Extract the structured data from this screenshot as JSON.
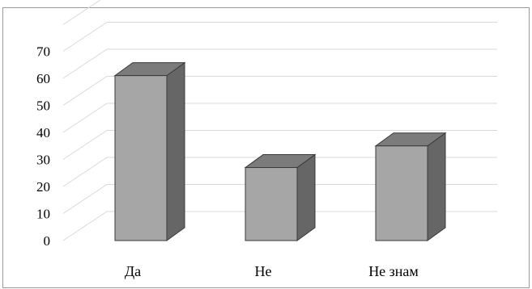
{
  "chart_data": {
    "type": "bar",
    "style": "3d-column",
    "title": "",
    "xlabel": "",
    "ylabel": "",
    "categories": [
      "Да",
      "Не",
      "Не знам"
    ],
    "values": [
      61,
      27,
      35
    ],
    "ylim": [
      0,
      70
    ],
    "yticks": [
      0,
      10,
      20,
      30,
      40,
      50,
      60,
      70
    ],
    "grid": true,
    "legend": "none",
    "colors": {
      "bar_front": "#a6a6a6",
      "bar_side": "#666666",
      "bar_top": "#7b7b7b",
      "bar_edge": "#3a3a3a",
      "grid": "#d9d9d9"
    }
  }
}
